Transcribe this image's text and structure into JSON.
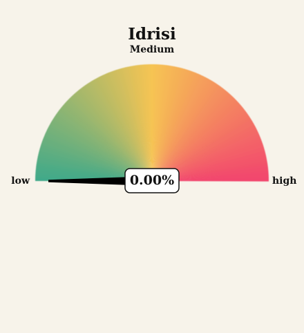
{
  "chart_data": {
    "type": "gauge",
    "title": "Idrisi",
    "subtitle": "Medium",
    "min_label": "low",
    "max_label": "high",
    "value": 0.0,
    "value_label": "0.00%",
    "colors": {
      "low": "#3fa98a",
      "mid": "#f6c453",
      "high": "#f2456e",
      "background": "#f7f3ea",
      "needle": "#000000"
    }
  }
}
